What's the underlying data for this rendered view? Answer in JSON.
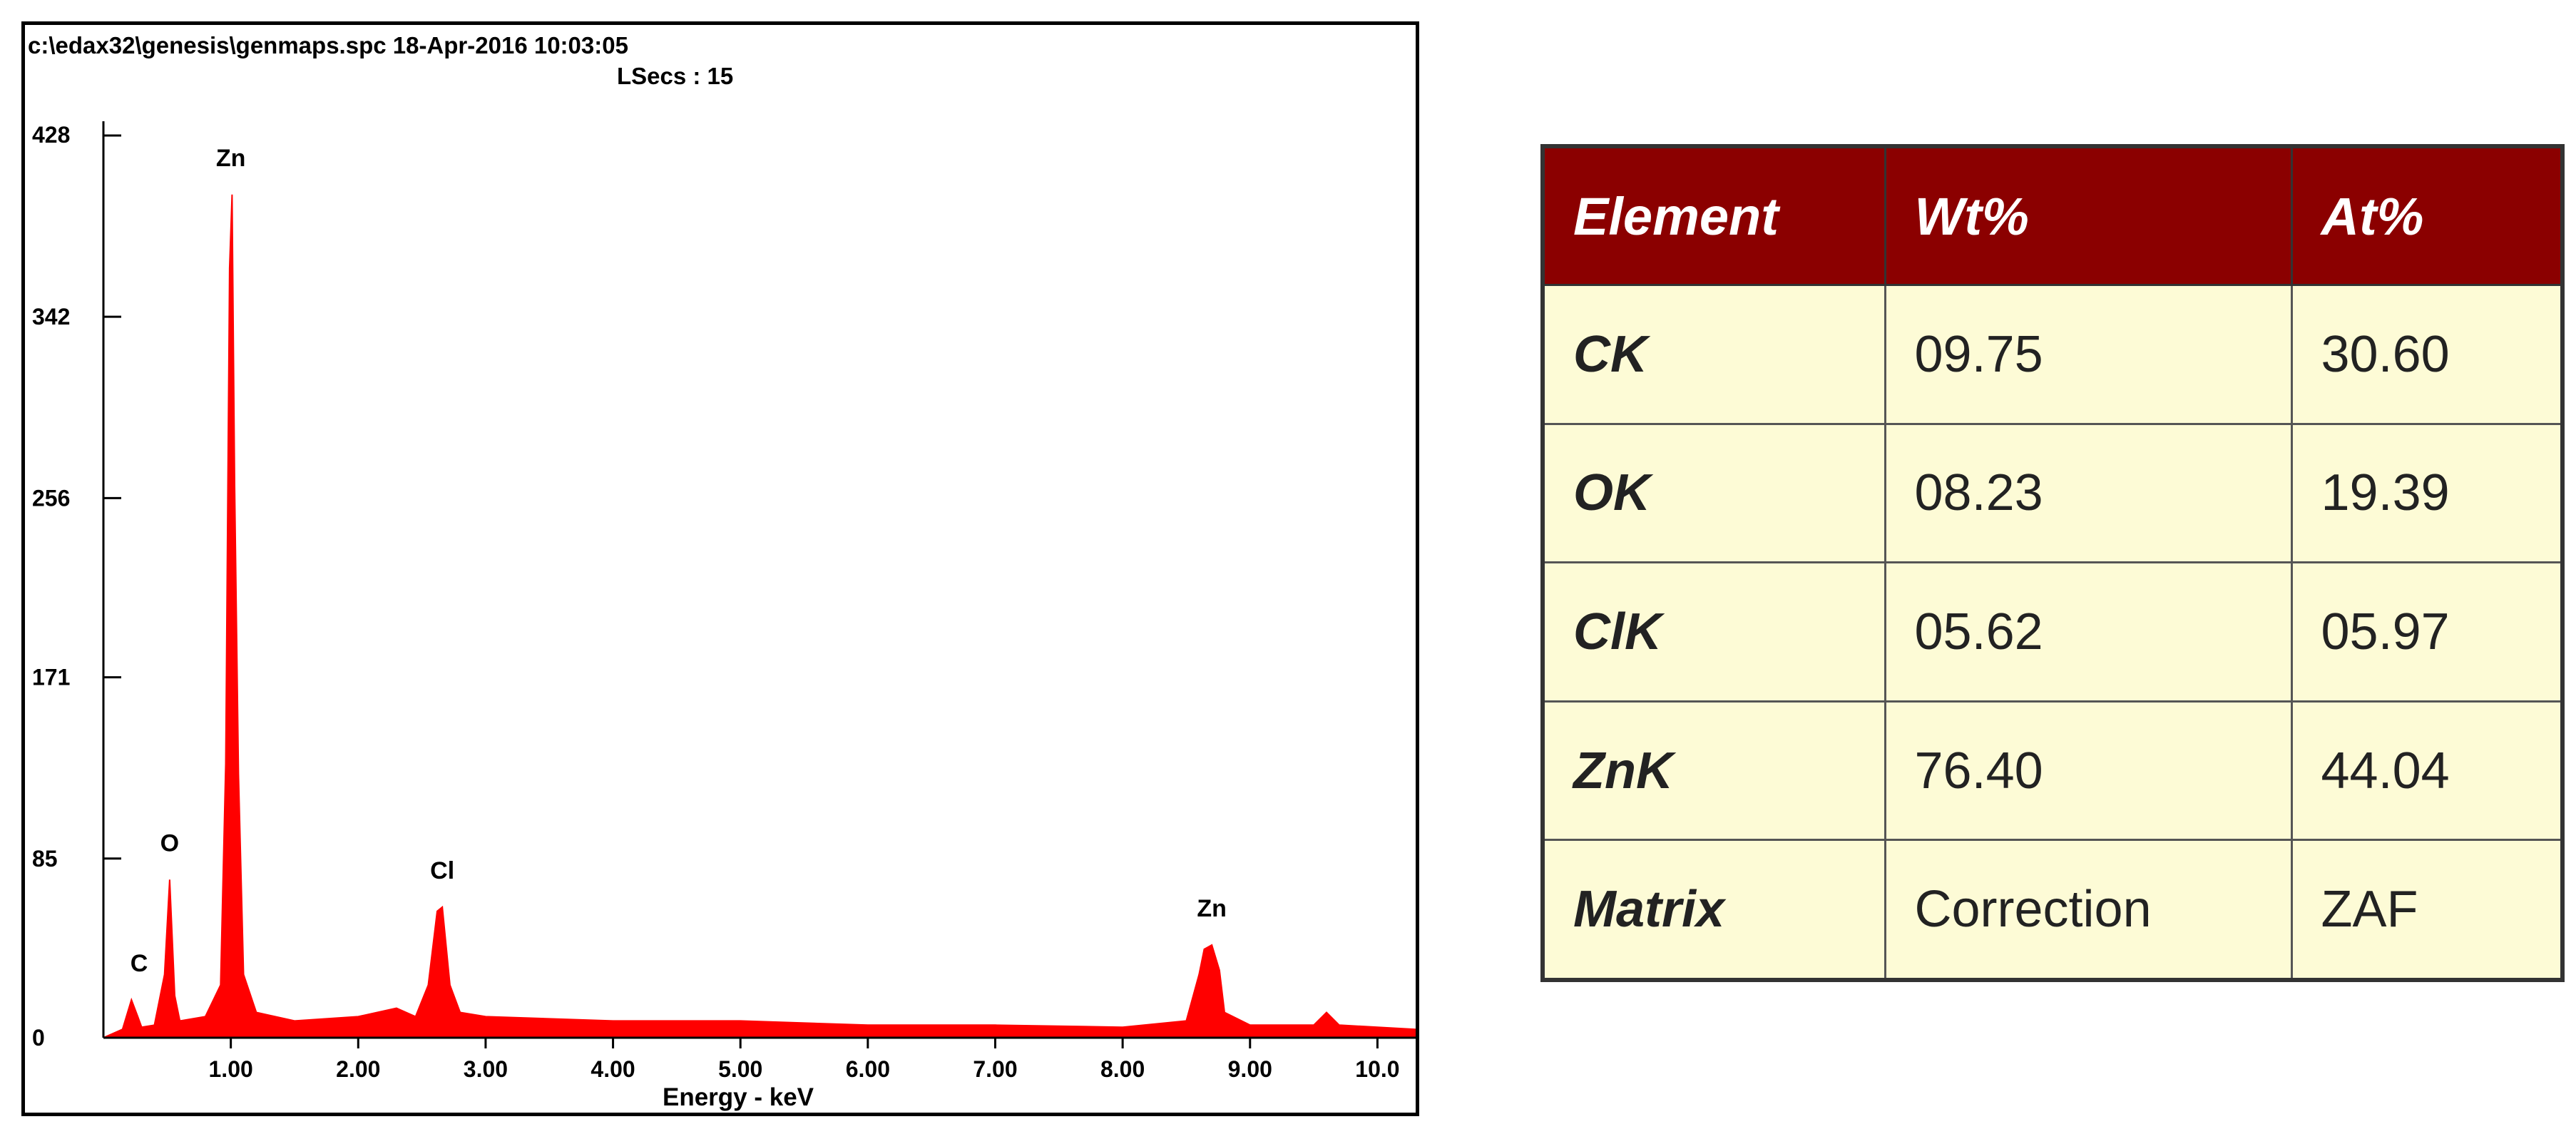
{
  "header": {
    "file_line": "c:\\edax32\\genesis\\genmaps.spc  18-Apr-2016 10:03:05",
    "lsecs_line": "LSecs :  15"
  },
  "colors": {
    "spectrum": "#ff0000",
    "table_header": "#8b0000",
    "table_cell": "#fdfbd6"
  },
  "chart_data": {
    "type": "line",
    "title": "",
    "xlabel": "Energy - keV",
    "ylabel": "",
    "xlim": [
      0,
      10.3
    ],
    "ylim": [
      0,
      428
    ],
    "x_ticks": [
      "1.00",
      "2.00",
      "3.00",
      "4.00",
      "5.00",
      "6.00",
      "7.00",
      "8.00",
      "9.00",
      "10.0"
    ],
    "y_ticks": [
      "0",
      "85",
      "171",
      "256",
      "342",
      "428"
    ],
    "series": [
      {
        "x": [
          0.0,
          0.15,
          0.22,
          0.27,
          0.3,
          0.4,
          0.48,
          0.52,
          0.56,
          0.6,
          0.8,
          0.92,
          0.96,
          0.99,
          1.01,
          1.03,
          1.06,
          1.1,
          1.2,
          1.5,
          2.0,
          2.3,
          2.45,
          2.55,
          2.62,
          2.66,
          2.72,
          2.8,
          3.0,
          4.0,
          5.0,
          6.0,
          7.0,
          8.0,
          8.5,
          8.6,
          8.64,
          8.7,
          8.76,
          8.8,
          9.0,
          9.5,
          9.6,
          9.7,
          10.3
        ],
        "y": [
          0,
          4,
          18,
          10,
          5,
          6,
          30,
          75,
          20,
          8,
          10,
          25,
          130,
          365,
          400,
          262,
          125,
          30,
          12,
          8,
          10,
          14,
          10,
          25,
          60,
          62,
          25,
          12,
          10,
          8,
          8,
          6,
          6,
          5,
          8,
          30,
          42,
          44,
          32,
          12,
          6,
          6,
          12,
          6,
          4
        ]
      }
    ],
    "annotations": [
      {
        "text": "C",
        "x": 0.28,
        "y": 18
      },
      {
        "text": "O",
        "x": 0.52,
        "y": 75
      },
      {
        "text": "Zn",
        "x": 1.0,
        "y": 400
      },
      {
        "text": "Cl",
        "x": 2.66,
        "y": 62
      },
      {
        "text": "Zn",
        "x": 8.7,
        "y": 44
      }
    ]
  },
  "table": {
    "headers": [
      "Element",
      "Wt%",
      "At%"
    ],
    "rows": [
      [
        "CK",
        "09.75",
        "30.60"
      ],
      [
        "OK",
        "08.23",
        "19.39"
      ],
      [
        "ClK",
        "05.62",
        "05.97"
      ],
      [
        "ZnK",
        "76.40",
        "44.04"
      ],
      [
        "Matrix",
        "Correction",
        "ZAF"
      ]
    ]
  }
}
